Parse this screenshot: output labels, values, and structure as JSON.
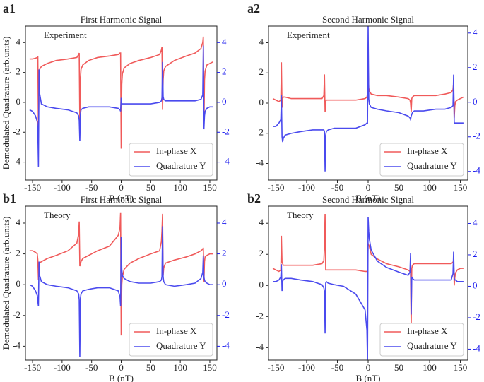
{
  "chart_data": [
    {
      "type": "line",
      "panel_label": "a1",
      "title": "First Harmonic Signal",
      "annotation": "Experiment",
      "xlabel": "B  (nT)",
      "ylabel": "Demodulated Quadrature (arb.units)",
      "legend": "lower right",
      "xlim": [
        -162,
        162
      ],
      "xticks": [
        -150,
        -100,
        -50,
        0,
        50,
        100,
        150
      ],
      "ylim": [
        -5.2,
        5.1
      ],
      "yticks": [
        -4,
        -2,
        0,
        2,
        4
      ],
      "y2lim": [
        -5.2,
        5.1
      ],
      "y2ticks": [
        -4,
        -2,
        0,
        2,
        4
      ],
      "y2color": "#1a1aee",
      "x": [
        -155,
        -150,
        -145,
        -142,
        -141,
        -140,
        -139,
        -138,
        -135,
        -125,
        -110,
        -90,
        -75,
        -72,
        -71,
        -70,
        -69,
        -68,
        -65,
        -55,
        -40,
        -20,
        -5,
        -2,
        -1,
        0,
        1,
        2,
        5,
        15,
        30,
        50,
        65,
        68,
        69,
        70,
        71,
        72,
        75,
        90,
        110,
        125,
        135,
        138,
        139,
        140,
        141,
        142,
        145,
        150,
        155
      ],
      "series": [
        {
          "name": "In-phase X",
          "color": "#f05a5a",
          "values": [
            2.9,
            2.9,
            2.95,
            3.0,
            3.1,
            -2.0,
            1.8,
            2.2,
            2.4,
            2.6,
            2.8,
            2.9,
            3.0,
            3.2,
            3.3,
            -1.5,
            1.5,
            2.2,
            2.5,
            2.8,
            3.0,
            3.1,
            3.2,
            3.3,
            3.3,
            -3.1,
            1.2,
            1.9,
            2.3,
            2.6,
            2.8,
            3.0,
            3.2,
            3.5,
            3.7,
            -0.5,
            1.5,
            2.1,
            2.4,
            2.8,
            3.1,
            3.3,
            3.6,
            4.0,
            4.4,
            -1.8,
            1.5,
            2.1,
            2.5,
            2.6,
            2.7
          ]
        },
        {
          "name": "Quadrature Y",
          "color": "#4a4aee",
          "axis": "y2",
          "values": [
            -0.5,
            -0.6,
            -0.9,
            -1.3,
            -2.0,
            -4.3,
            2.2,
            0.6,
            -0.1,
            -0.3,
            -0.4,
            -0.5,
            -0.7,
            -0.9,
            -1.2,
            -2.6,
            -0.8,
            -0.5,
            -0.4,
            -0.3,
            -0.3,
            -0.3,
            -0.4,
            -0.5,
            -0.6,
            0.3,
            -0.1,
            -0.1,
            -0.1,
            -0.1,
            -0.1,
            -0.1,
            0.0,
            0.1,
            0.3,
            2.7,
            0.4,
            0.2,
            0.1,
            0.1,
            0.1,
            0.1,
            0.2,
            0.5,
            3.8,
            -1.8,
            -0.9,
            -0.6,
            -0.4,
            -0.3,
            -0.3
          ]
        }
      ]
    },
    {
      "type": "line",
      "panel_label": "a2",
      "title": "Second Harmonic Signal",
      "annotation": "Experiment",
      "xlabel": "B  (nT)",
      "legend": "lower right",
      "xlim": [
        -162,
        162
      ],
      "xticks": [
        -150,
        -100,
        -50,
        0,
        50,
        100,
        150
      ],
      "ylim": [
        -5.1,
        5.1
      ],
      "yticks": [
        -4,
        -2,
        0,
        2,
        4
      ],
      "y2lim": [
        -4.5,
        4.4
      ],
      "y2ticks": [
        -4,
        -2,
        0,
        2,
        4
      ],
      "y2color": "#1a1aee",
      "x": [
        -155,
        -150,
        -145,
        -142,
        -141,
        -140,
        -139,
        -138,
        -135,
        -125,
        -110,
        -90,
        -75,
        -72,
        -71,
        -70,
        -69,
        -68,
        -65,
        -55,
        -40,
        -20,
        -5,
        -2,
        -1,
        0,
        1,
        2,
        5,
        15,
        30,
        50,
        65,
        68,
        69,
        70,
        71,
        72,
        75,
        90,
        110,
        125,
        135,
        138,
        139,
        140,
        141,
        142,
        145,
        150,
        155
      ],
      "series": [
        {
          "name": "In-phase X",
          "color": "#f05a5a",
          "values": [
            0.3,
            0.2,
            0.1,
            0.2,
            2.7,
            -0.3,
            0.3,
            0.4,
            0.4,
            0.3,
            0.3,
            0.3,
            0.3,
            0.5,
            1.9,
            -0.6,
            0.1,
            0.2,
            0.2,
            0.2,
            0.2,
            0.2,
            0.3,
            0.4,
            0.6,
            2.4,
            1.0,
            0.8,
            0.6,
            0.5,
            0.5,
            0.4,
            0.3,
            0.2,
            0.0,
            -0.6,
            0.3,
            0.4,
            0.5,
            0.5,
            0.5,
            0.6,
            0.7,
            0.9,
            1.3,
            -1.0,
            -0.2,
            0.1,
            0.2,
            0.3,
            0.4
          ]
        },
        {
          "name": "Quadrature Y",
          "color": "#4a4aee",
          "axis": "y2",
          "values": [
            -1.4,
            -1.4,
            -1.2,
            -1.0,
            0.4,
            -2.0,
            -2.3,
            -2.1,
            -1.9,
            -1.8,
            -1.7,
            -1.6,
            -1.6,
            -1.6,
            -1.7,
            -4.0,
            -1.9,
            -1.7,
            -1.6,
            -1.5,
            -1.5,
            -1.5,
            -1.3,
            -1.2,
            -1.2,
            4.4,
            0.2,
            -0.1,
            -0.3,
            -0.4,
            -0.5,
            -0.6,
            -0.8,
            -0.9,
            -1.0,
            -0.8,
            -0.7,
            -0.6,
            -0.5,
            -0.5,
            -0.4,
            -0.4,
            -0.3,
            -0.2,
            1.6,
            -1.2,
            -1.2,
            -1.2,
            -1.2,
            -1.2,
            -1.2
          ]
        }
      ]
    },
    {
      "type": "line",
      "panel_label": "b1",
      "title": "First Harmonic Signal",
      "annotation": "Theory",
      "xlabel": "B  (nT)",
      "ylabel": "Demodulated Quadrature (arb.units)",
      "legend": "lower right",
      "xlim": [
        -162,
        162
      ],
      "xticks": [
        -150,
        -100,
        -50,
        0,
        50,
        100,
        150
      ],
      "ylim": [
        -4.9,
        5.1
      ],
      "yticks": [
        -4,
        -2,
        0,
        2,
        4
      ],
      "y2lim": [
        -4.9,
        5.1
      ],
      "y2ticks": [
        -4,
        -2,
        0,
        2,
        4
      ],
      "y2color": "#1a1aee",
      "x": [
        -155,
        -150,
        -145,
        -142,
        -141,
        -140,
        -139,
        -138,
        -135,
        -125,
        -110,
        -90,
        -75,
        -72,
        -71,
        -70,
        -69,
        -68,
        -65,
        -55,
        -40,
        -20,
        -5,
        -2,
        -1,
        0,
        1,
        2,
        5,
        15,
        30,
        50,
        65,
        68,
        69,
        70,
        71,
        72,
        75,
        90,
        110,
        125,
        135,
        138,
        139,
        140,
        141,
        142,
        145,
        150,
        155
      ],
      "series": [
        {
          "name": "In-phase X",
          "color": "#f05a5a",
          "values": [
            2.2,
            2.2,
            2.1,
            2.0,
            1.6,
            0.3,
            1.3,
            1.4,
            1.5,
            1.7,
            1.9,
            2.2,
            2.7,
            3.3,
            4.1,
            1.2,
            1.3,
            1.5,
            1.7,
            1.9,
            2.2,
            2.5,
            3.2,
            3.7,
            4.7,
            -3.3,
            0.0,
            0.5,
            1.0,
            1.4,
            1.7,
            2.0,
            2.2,
            2.8,
            3.5,
            4.6,
            0.6,
            1.1,
            1.4,
            1.6,
            1.8,
            2.0,
            2.2,
            2.3,
            2.4,
            0.2,
            1.5,
            1.8,
            1.9,
            2.0,
            2.0
          ]
        },
        {
          "name": "Quadrature Y",
          "color": "#4a4aee",
          "axis": "y2",
          "values": [
            0.0,
            -0.1,
            -0.4,
            -0.7,
            -1.1,
            -1.4,
            1.5,
            0.6,
            0.2,
            0.0,
            -0.1,
            -0.2,
            -0.4,
            -0.6,
            -1.0,
            -4.7,
            -0.9,
            -0.6,
            -0.4,
            -0.3,
            -0.2,
            -0.2,
            -0.4,
            -0.8,
            -1.4,
            3.1,
            1.0,
            0.6,
            0.4,
            0.2,
            0.1,
            0.1,
            0.2,
            0.3,
            0.5,
            3.8,
            0.5,
            0.2,
            0.0,
            -0.1,
            0.0,
            0.1,
            0.4,
            0.8,
            1.9,
            0.5,
            0.3,
            0.2,
            0.1,
            0.0,
            0.0
          ]
        }
      ]
    },
    {
      "type": "line",
      "panel_label": "b2",
      "title": "Second Harmonic Signal",
      "annotation": "Theory",
      "xlabel": "B  (nT)",
      "legend": "lower right",
      "xlim": [
        -162,
        162
      ],
      "xticks": [
        -150,
        -100,
        -50,
        0,
        50,
        100,
        150
      ],
      "ylim": [
        -4.8,
        5.1
      ],
      "yticks": [
        -4,
        -2,
        0,
        2,
        4
      ],
      "y2lim": [
        -4.7,
        5.1
      ],
      "y2ticks": [
        -4,
        -2,
        0,
        2,
        4
      ],
      "y2color": "#1a1aee",
      "x": [
        -155,
        -150,
        -145,
        -142,
        -141,
        -140,
        -139,
        -138,
        -135,
        -125,
        -110,
        -90,
        -75,
        -72,
        -71,
        -70,
        -69,
        -68,
        -65,
        -55,
        -40,
        -20,
        -5,
        -2,
        -1,
        0,
        1,
        2,
        5,
        15,
        30,
        50,
        65,
        68,
        69,
        70,
        71,
        72,
        75,
        90,
        110,
        125,
        135,
        138,
        139,
        140,
        141,
        142,
        145,
        150,
        155
      ],
      "series": [
        {
          "name": "In-phase X",
          "color": "#f05a5a",
          "values": [
            1.1,
            1.0,
            0.9,
            1.0,
            3.2,
            1.5,
            1.4,
            1.3,
            1.3,
            1.3,
            1.3,
            1.3,
            1.4,
            1.6,
            2.5,
            4.6,
            1.0,
            1.0,
            1.0,
            1.0,
            1.0,
            1.0,
            0.9,
            0.9,
            0.9,
            2.7,
            2.6,
            2.5,
            2.0,
            1.7,
            1.4,
            1.2,
            1.0,
            0.9,
            0.8,
            -2.7,
            1.1,
            1.3,
            1.4,
            1.4,
            1.4,
            1.4,
            1.4,
            1.5,
            1.6,
            0.0,
            0.5,
            0.8,
            1.0,
            1.1,
            1.1
          ]
        },
        {
          "name": "Quadrature Y",
          "color": "#4a4aee",
          "axis": "y2",
          "values": [
            0.3,
            0.3,
            0.4,
            0.6,
            1.4,
            -0.3,
            0.3,
            0.4,
            0.5,
            0.5,
            0.4,
            0.3,
            0.1,
            -0.1,
            -0.3,
            -3.0,
            0.2,
            0.3,
            0.2,
            0.1,
            0.0,
            -0.5,
            -1.5,
            -2.8,
            -4.9,
            4.4,
            3.5,
            3.0,
            2.3,
            1.6,
            1.2,
            0.9,
            0.7,
            0.9,
            2.1,
            -1.8,
            0.6,
            0.5,
            0.4,
            0.4,
            0.4,
            0.4,
            0.4,
            0.8,
            2.2,
            0.5,
            0.4,
            0.4,
            0.3,
            0.3,
            0.3
          ]
        }
      ]
    }
  ]
}
